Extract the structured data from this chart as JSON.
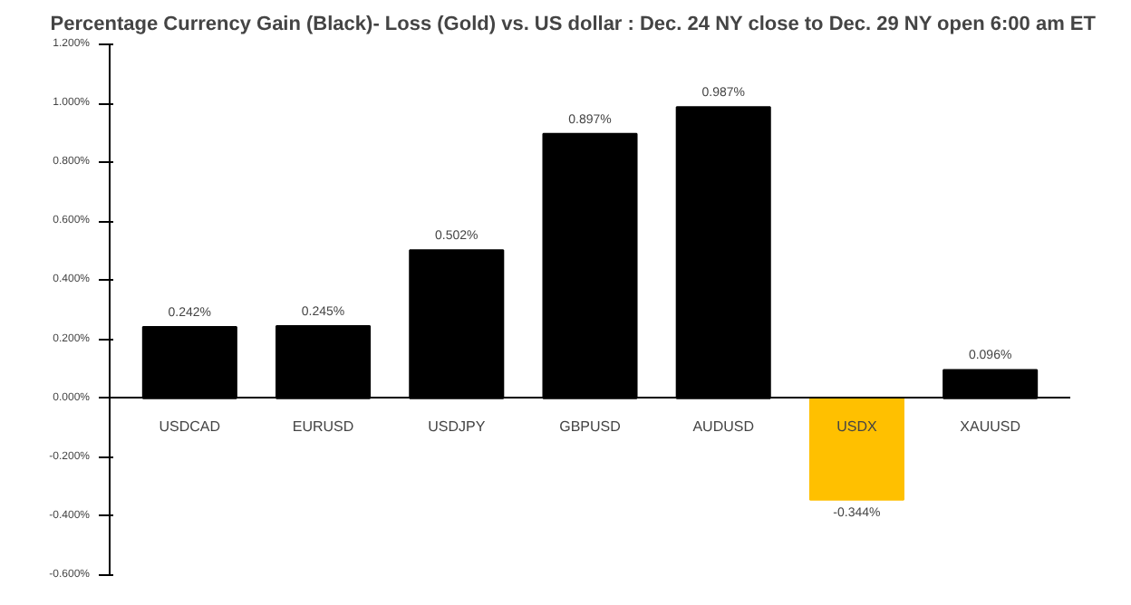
{
  "chart_data": {
    "type": "bar",
    "title": "Percentage Currency  Gain (Black)- Loss (Gold)  vs. US dollar :  Dec. 24 NY close  to  Dec. 29 NY open  6:00 am ET",
    "categories": [
      "USDCAD",
      "EURUSD",
      "USDJPY",
      "GBPUSD",
      "AUDUSD",
      "USDX",
      "XAUUSD"
    ],
    "values": [
      0.242,
      0.245,
      0.502,
      0.897,
      0.987,
      -0.344,
      0.096
    ],
    "colors": [
      "#000000",
      "#000000",
      "#000000",
      "#000000",
      "#000000",
      "#ffc000",
      "#000000"
    ],
    "value_labels": [
      "0.242%",
      "0.245%",
      "0.502%",
      "0.897%",
      "0.987%",
      "-0.344%",
      "0.096%"
    ],
    "ylim": [
      -0.6,
      1.2
    ],
    "yticks": [
      {
        "value": -0.6,
        "label": "-0.600%"
      },
      {
        "value": -0.4,
        "label": "-0.400%"
      },
      {
        "value": -0.2,
        "label": "-0.200%"
      },
      {
        "value": 0,
        "label": "0.000%"
      },
      {
        "value": 0.2,
        "label": "0.200%"
      },
      {
        "value": 0.4,
        "label": "0.400%"
      },
      {
        "value": 0.6,
        "label": "0.600%"
      },
      {
        "value": 0.8,
        "label": "0.800%"
      },
      {
        "value": 1.0,
        "label": "1.000%"
      },
      {
        "value": 1.2,
        "label": "1.200%"
      }
    ],
    "grid": false
  }
}
